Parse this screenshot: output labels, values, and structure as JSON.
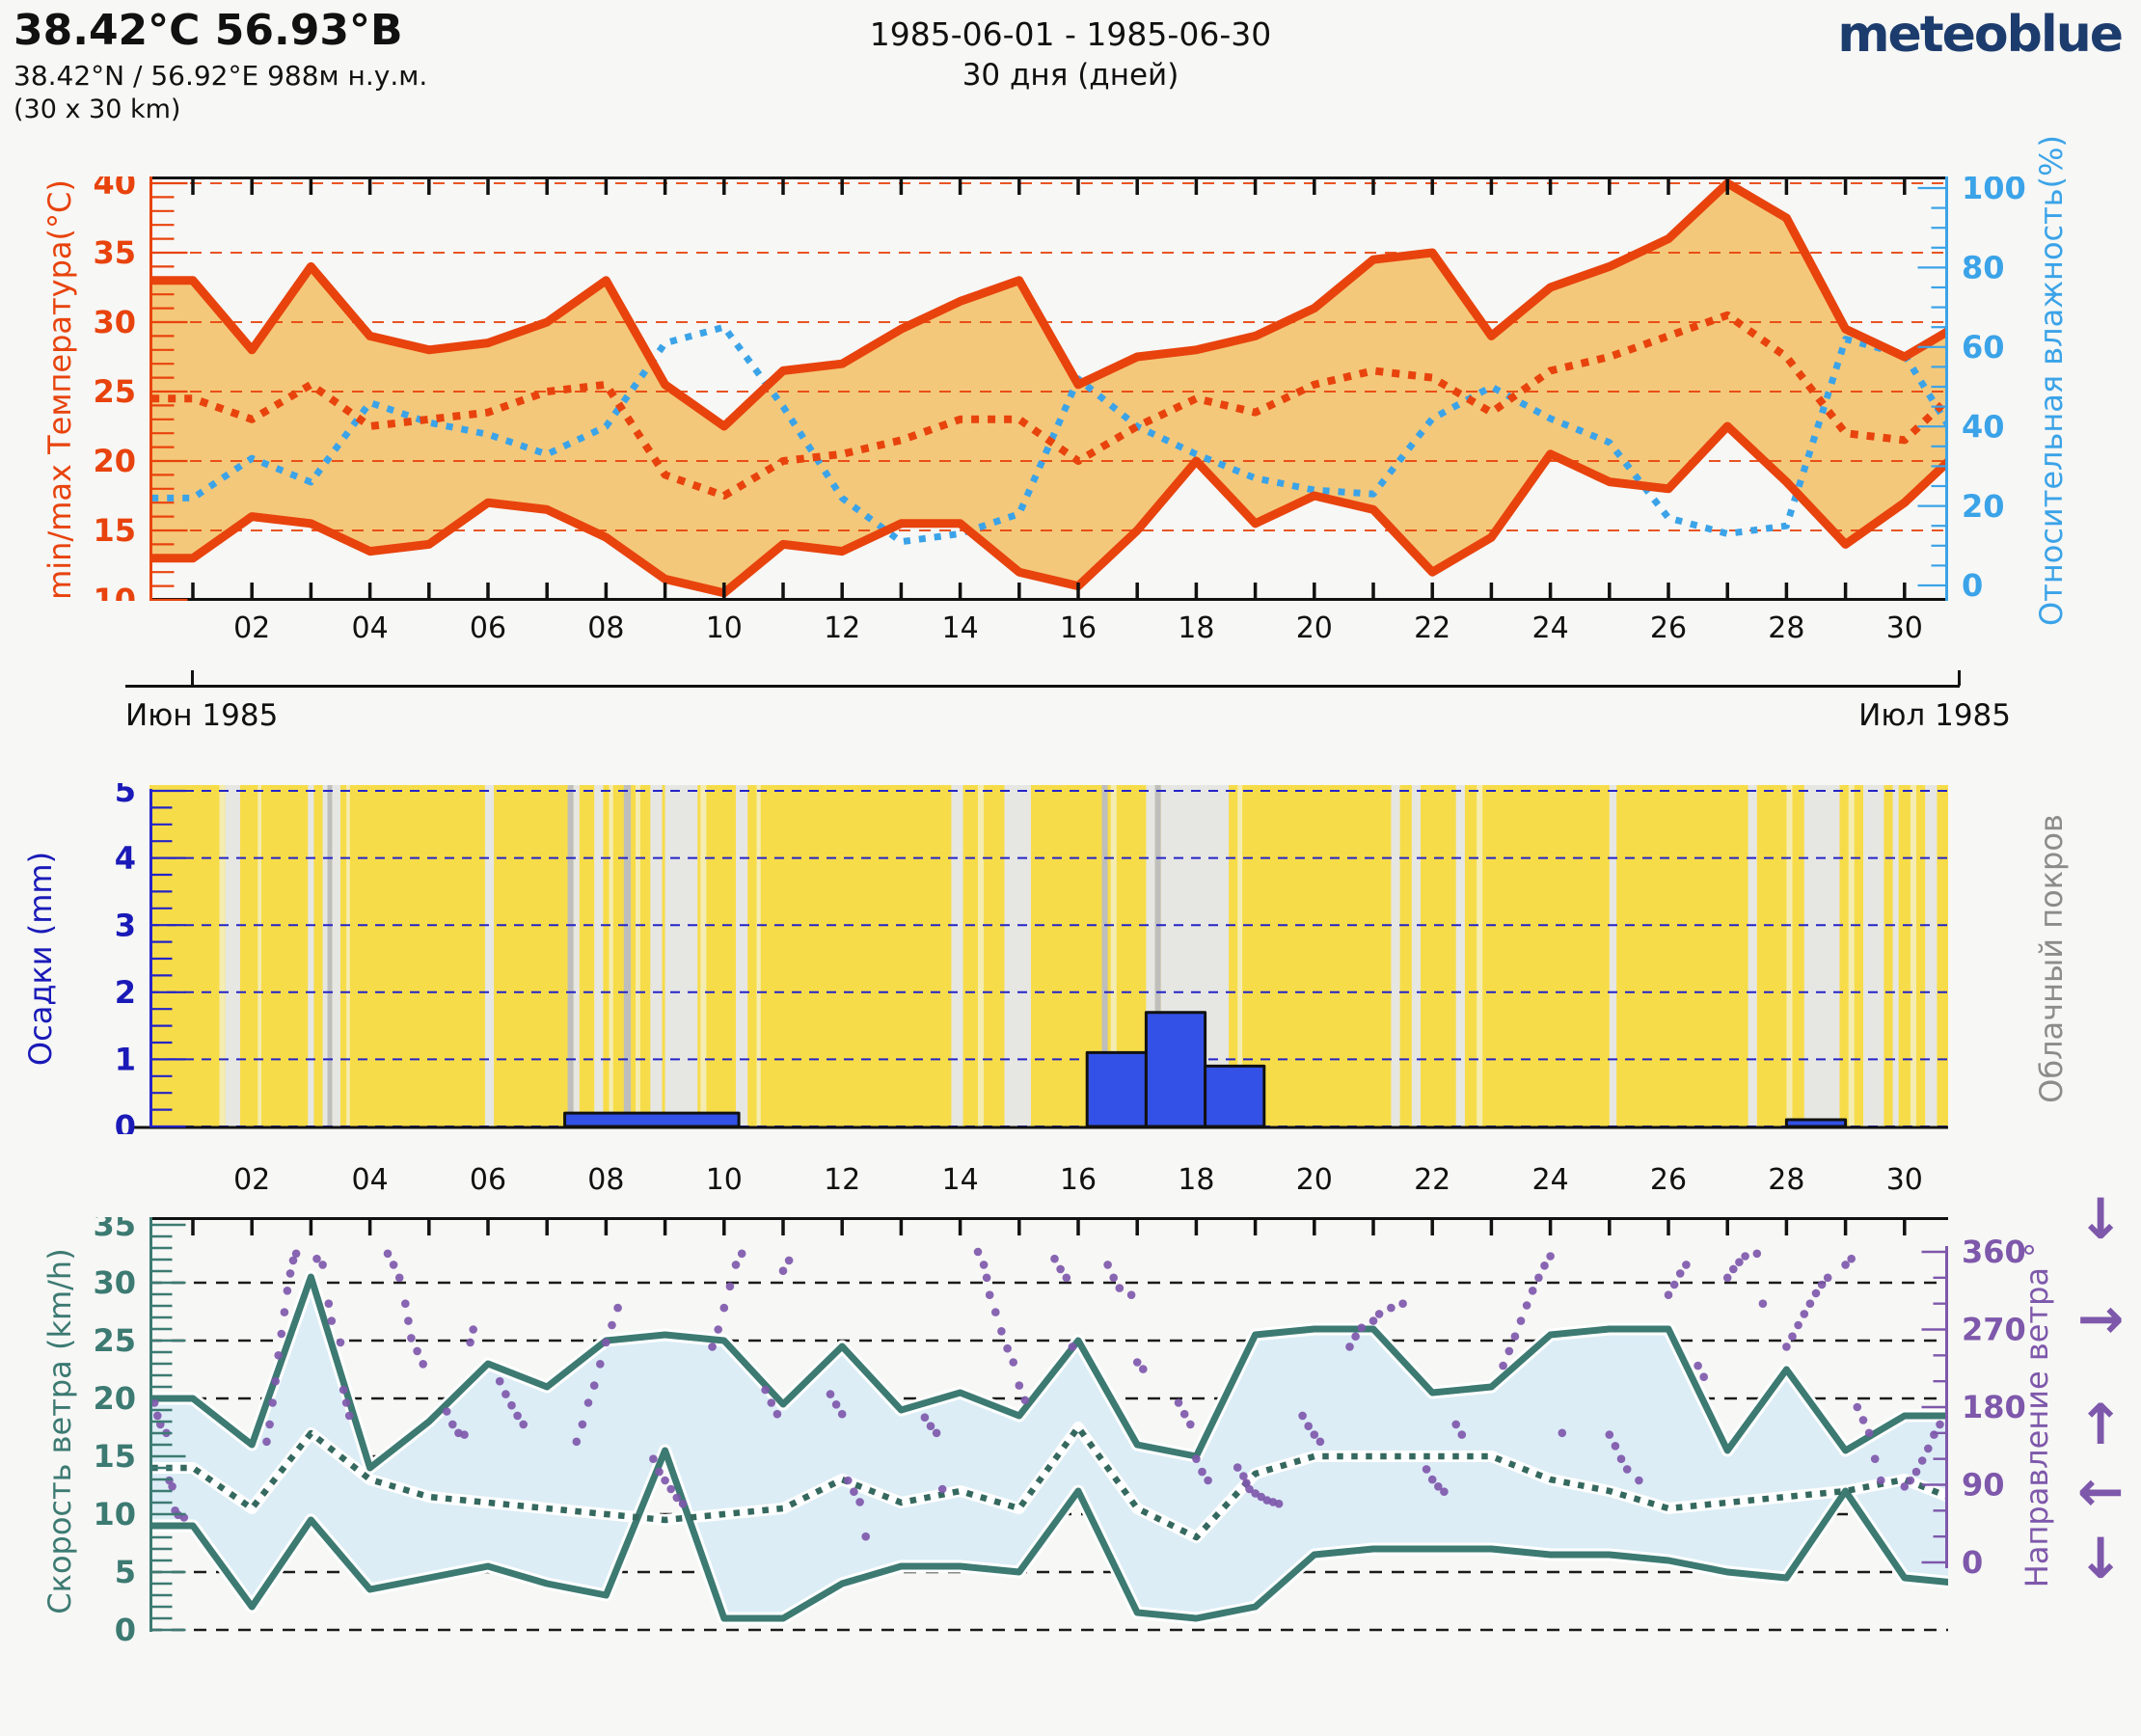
{
  "header": {
    "title": "38.42°C 56.93°В",
    "coordinates": "38.42°N / 56.92°E   988м н.у.м.",
    "area": "(30 x 30 km)",
    "period": "1985-06-01 - 1985-06-30",
    "duration": "30 дня (дней)",
    "logo": "meteoblue"
  },
  "months": {
    "left": "Июн 1985",
    "right": "Июл 1985"
  },
  "day_labels": [
    "02",
    "04",
    "06",
    "08",
    "10",
    "12",
    "14",
    "16",
    "18",
    "20",
    "22",
    "24",
    "26",
    "28",
    "30"
  ],
  "chart_data": [
    {
      "id": "temperature_humidity",
      "type": "line",
      "title_left": "min/max Температура(°C)",
      "title_right": "Относительная влажность(%)",
      "ylim": [
        10,
        40
      ],
      "ytick_step": 5,
      "ytick_minor": 1,
      "y2lim": [
        0,
        100
      ],
      "y2tick_step": 20,
      "y2tick_minor": 5,
      "x_days": [
        1,
        2,
        3,
        4,
        5,
        6,
        7,
        8,
        9,
        10,
        11,
        12,
        13,
        14,
        15,
        16,
        17,
        18,
        19,
        20,
        21,
        22,
        23,
        24,
        25,
        26,
        27,
        28,
        29,
        30,
        31
      ],
      "axis_color": "#e8430d",
      "axis2_color": "#3ba3e8",
      "band_fill": "#f4c87a",
      "gridline_color": "#e8430d",
      "series": [
        {
          "name": "t_max",
          "style": "solid",
          "color": "#e8430d",
          "values": [
            33,
            28,
            34,
            29,
            28,
            28.5,
            30,
            33,
            25.5,
            22.5,
            26.5,
            27,
            29.5,
            31.5,
            33,
            25.5,
            27.5,
            28,
            29,
            31,
            34.5,
            35,
            29,
            32.5,
            34,
            36,
            40,
            37.5,
            29.5,
            27.5,
            30
          ]
        },
        {
          "name": "t_mean",
          "style": "dotted",
          "color": "#e8430d",
          "values": [
            24.5,
            23,
            25.5,
            22.5,
            23,
            23.5,
            25,
            25.5,
            19,
            17.5,
            20,
            20.5,
            21.5,
            23,
            23,
            20,
            22.5,
            24.5,
            23.5,
            25.5,
            26.5,
            26,
            23.5,
            26.5,
            27.5,
            29,
            30.5,
            27.5,
            22,
            21.5,
            25.5
          ]
        },
        {
          "name": "t_min",
          "style": "solid",
          "color": "#e8430d",
          "values": [
            13,
            16,
            15.5,
            13.5,
            14,
            17,
            16.5,
            14.5,
            11.5,
            10.5,
            14,
            13.5,
            15.5,
            15.5,
            12,
            11,
            15,
            20,
            15.5,
            17.5,
            16.5,
            12,
            14.5,
            20.5,
            18.5,
            18,
            22.5,
            18.5,
            14,
            17,
            21
          ]
        },
        {
          "name": "rel_humidity",
          "style": "dotted",
          "color": "#3ba3e8",
          "axis": "y2",
          "values": [
            22,
            32,
            26,
            46,
            41,
            38,
            33,
            40,
            61,
            65,
            45,
            22,
            11,
            13,
            18,
            52,
            40,
            33,
            27,
            24,
            23,
            42,
            50,
            42,
            36,
            17,
            13,
            15,
            62,
            58,
            34
          ]
        }
      ]
    },
    {
      "id": "precipitation_cloud",
      "type": "bar",
      "title_left": "Осадки (mm)",
      "title_right": "Облачный покров",
      "ylim": [
        0,
        5
      ],
      "ytick_step": 1,
      "ytick_minor": 0.25,
      "axis_color": "#2424c8",
      "label_color": "#1a1ab8",
      "cloud_label_color": "#8c8c8c",
      "bar_color": "#3351e6",
      "bars": [
        {
          "from": 7.3,
          "to": 10.25,
          "mm": 0.2
        },
        {
          "from": 16.15,
          "to": 17.15,
          "mm": 1.1
        },
        {
          "from": 17.15,
          "to": 18.15,
          "mm": 1.7
        },
        {
          "from": 18.15,
          "to": 19.15,
          "mm": 0.9
        },
        {
          "from": 28.0,
          "to": 29.0,
          "mm": 0.1
        }
      ],
      "cloud_shades": {
        "sun": "#f7dc49",
        "pale": "#f4ecb0",
        "light": "#e6e6e3",
        "dark": "#bebebc"
      },
      "cloud_stripes": [
        [
          1.45,
          1.55,
          "pale"
        ],
        [
          1.55,
          1.8,
          "light"
        ],
        [
          2.1,
          2.16,
          "pale"
        ],
        [
          2.95,
          3.05,
          "light"
        ],
        [
          3.2,
          3.28,
          "light"
        ],
        [
          3.28,
          3.36,
          "dark"
        ],
        [
          3.36,
          3.5,
          "light"
        ],
        [
          3.6,
          3.66,
          "pale"
        ],
        [
          5.95,
          6.1,
          "light"
        ],
        [
          7.35,
          7.45,
          "dark"
        ],
        [
          7.45,
          7.55,
          "light"
        ],
        [
          7.8,
          7.95,
          "light"
        ],
        [
          8.05,
          8.12,
          "pale"
        ],
        [
          8.3,
          8.42,
          "dark"
        ],
        [
          8.5,
          8.58,
          "pale"
        ],
        [
          8.75,
          8.95,
          "light"
        ],
        [
          9.0,
          9.55,
          "light"
        ],
        [
          9.6,
          9.7,
          "pale"
        ],
        [
          10.2,
          10.4,
          "light"
        ],
        [
          10.55,
          10.62,
          "pale"
        ],
        [
          13.85,
          14.05,
          "light"
        ],
        [
          14.3,
          14.4,
          "pale"
        ],
        [
          14.75,
          15.2,
          "light"
        ],
        [
          16.4,
          16.5,
          "dark"
        ],
        [
          16.55,
          16.65,
          "pale"
        ],
        [
          17.15,
          17.3,
          "light"
        ],
        [
          17.3,
          17.4,
          "dark"
        ],
        [
          17.4,
          18.55,
          "light"
        ],
        [
          18.7,
          18.78,
          "pale"
        ],
        [
          21.3,
          21.45,
          "light"
        ],
        [
          21.65,
          21.8,
          "light"
        ],
        [
          22.4,
          22.55,
          "light"
        ],
        [
          22.75,
          22.85,
          "pale"
        ],
        [
          25.0,
          25.12,
          "light"
        ],
        [
          27.35,
          27.5,
          "light"
        ],
        [
          28.0,
          28.1,
          "pale"
        ],
        [
          28.3,
          28.9,
          "light"
        ],
        [
          29.05,
          29.15,
          "pale"
        ],
        [
          29.3,
          29.65,
          "light"
        ],
        [
          29.8,
          29.9,
          "light"
        ],
        [
          30.1,
          30.2,
          "pale"
        ],
        [
          30.35,
          30.55,
          "light"
        ]
      ]
    },
    {
      "id": "wind",
      "type": "line+scatter",
      "title_left": "Скорость ветра (km/h)",
      "title_right": "Направление ветра °",
      "ylim": [
        0,
        35
      ],
      "ytick_step": 5,
      "ytick_minor": 1,
      "y2lim": [
        0,
        360
      ],
      "y2tick_step": 90,
      "y2tick_minor": 30,
      "axis_color": "#3c7a72",
      "axis2_color": "#7e58ab",
      "band_fill": "#dcedf6",
      "gridline_color": "#1a1a1a",
      "series": [
        {
          "name": "wind_max",
          "style": "solid",
          "color": "#3c7a72",
          "values": [
            20,
            16,
            30.5,
            14,
            18,
            23,
            21,
            25,
            25.5,
            25,
            19.5,
            24.5,
            19,
            20.5,
            18.5,
            25,
            16,
            15,
            25.5,
            26,
            26,
            20.5,
            21,
            25.5,
            26,
            26,
            15.5,
            22.5,
            15.5,
            18.5,
            18.5
          ]
        },
        {
          "name": "wind_mean",
          "style": "dotted",
          "color": "#35695f",
          "values": [
            14,
            10.5,
            17,
            13,
            11.5,
            11,
            10.5,
            10,
            9.5,
            10,
            10.5,
            13,
            11,
            12,
            10.5,
            17.5,
            10.5,
            8,
            13.5,
            15,
            15,
            15,
            15,
            13,
            12,
            10.5,
            11,
            11.5,
            12,
            13,
            11
          ]
        },
        {
          "name": "wind_min",
          "style": "solid",
          "color": "#3c7a72",
          "values": [
            9,
            2,
            9.5,
            3.5,
            4.5,
            5.5,
            4,
            3,
            15.5,
            1,
            1,
            4,
            5.5,
            5.5,
            5,
            12,
            1.5,
            1,
            2,
            6.5,
            7,
            7,
            7,
            6.5,
            6.5,
            6,
            5,
            4.5,
            12,
            4.5,
            4
          ]
        }
      ],
      "direction_color": "#7e58ab",
      "arrow_glyphs": [
        "↓",
        "→",
        "↑",
        "←",
        "↓"
      ],
      "direction_points": [
        [
          0.35,
          185
        ],
        [
          0.4,
          170
        ],
        [
          0.45,
          160
        ],
        [
          0.55,
          150
        ],
        [
          0.6,
          95
        ],
        [
          0.65,
          88
        ],
        [
          0.7,
          60
        ],
        [
          0.75,
          55
        ],
        [
          0.85,
          52
        ],
        [
          2.25,
          140
        ],
        [
          2.3,
          160
        ],
        [
          2.35,
          185
        ],
        [
          2.4,
          210
        ],
        [
          2.45,
          240
        ],
        [
          2.5,
          265
        ],
        [
          2.55,
          290
        ],
        [
          2.6,
          315
        ],
        [
          2.65,
          335
        ],
        [
          2.7,
          350
        ],
        [
          2.75,
          358
        ],
        [
          3.1,
          352
        ],
        [
          3.2,
          345
        ],
        [
          3.3,
          300
        ],
        [
          3.35,
          280
        ],
        [
          3.5,
          255
        ],
        [
          3.55,
          200
        ],
        [
          3.6,
          185
        ],
        [
          3.65,
          170
        ],
        [
          4.3,
          358
        ],
        [
          4.4,
          345
        ],
        [
          4.5,
          330
        ],
        [
          4.6,
          300
        ],
        [
          4.65,
          280
        ],
        [
          4.7,
          260
        ],
        [
          4.8,
          245
        ],
        [
          4.9,
          230
        ],
        [
          5.3,
          175
        ],
        [
          5.4,
          160
        ],
        [
          5.5,
          150
        ],
        [
          5.6,
          148
        ],
        [
          5.7,
          255
        ],
        [
          5.75,
          270
        ],
        [
          6.2,
          210
        ],
        [
          6.3,
          195
        ],
        [
          6.4,
          182
        ],
        [
          6.5,
          170
        ],
        [
          6.6,
          160
        ],
        [
          7.5,
          140
        ],
        [
          7.6,
          160
        ],
        [
          7.7,
          185
        ],
        [
          7.8,
          205
        ],
        [
          7.9,
          230
        ],
        [
          8.0,
          255
        ],
        [
          8.1,
          275
        ],
        [
          8.2,
          295
        ],
        [
          8.8,
          120
        ],
        [
          8.9,
          105
        ],
        [
          9.0,
          95
        ],
        [
          9.1,
          85
        ],
        [
          9.2,
          75
        ],
        [
          9.3,
          68
        ],
        [
          9.8,
          250
        ],
        [
          9.9,
          270
        ],
        [
          10.0,
          295
        ],
        [
          10.1,
          320
        ],
        [
          10.2,
          345
        ],
        [
          10.3,
          358
        ],
        [
          10.7,
          200
        ],
        [
          10.8,
          185
        ],
        [
          10.9,
          172
        ],
        [
          11.0,
          338
        ],
        [
          11.1,
          350
        ],
        [
          11.8,
          195
        ],
        [
          11.9,
          183
        ],
        [
          12.0,
          172
        ],
        [
          12.1,
          95
        ],
        [
          12.2,
          82
        ],
        [
          12.3,
          70
        ],
        [
          12.4,
          30
        ],
        [
          13.4,
          168
        ],
        [
          13.5,
          158
        ],
        [
          13.6,
          150
        ],
        [
          13.7,
          85
        ],
        [
          14.3,
          360
        ],
        [
          14.4,
          345
        ],
        [
          14.45,
          330
        ],
        [
          14.5,
          310
        ],
        [
          14.6,
          290
        ],
        [
          14.7,
          268
        ],
        [
          14.8,
          248
        ],
        [
          14.9,
          232
        ],
        [
          15.0,
          205
        ],
        [
          15.1,
          188
        ],
        [
          15.6,
          352
        ],
        [
          15.7,
          340
        ],
        [
          15.8,
          330
        ],
        [
          15.9,
          250
        ],
        [
          16.5,
          345
        ],
        [
          16.6,
          330
        ],
        [
          16.7,
          318
        ],
        [
          16.9,
          310
        ],
        [
          17.0,
          232
        ],
        [
          17.1,
          224
        ],
        [
          17.7,
          185
        ],
        [
          17.8,
          172
        ],
        [
          17.9,
          160
        ],
        [
          18.0,
          120
        ],
        [
          18.1,
          105
        ],
        [
          18.2,
          95
        ],
        [
          18.7,
          110
        ],
        [
          18.8,
          100
        ],
        [
          18.85,
          92
        ],
        [
          18.9,
          85
        ],
        [
          19.0,
          80
        ],
        [
          19.1,
          76
        ],
        [
          19.2,
          72
        ],
        [
          19.3,
          70
        ],
        [
          19.4,
          68
        ],
        [
          19.8,
          170
        ],
        [
          19.9,
          158
        ],
        [
          20.0,
          148
        ],
        [
          20.1,
          140
        ],
        [
          20.6,
          250
        ],
        [
          20.7,
          262
        ],
        [
          20.8,
          272
        ],
        [
          21.0,
          280
        ],
        [
          21.1,
          288
        ],
        [
          21.3,
          295
        ],
        [
          21.5,
          300
        ],
        [
          21.9,
          108
        ],
        [
          22.0,
          96
        ],
        [
          22.1,
          88
        ],
        [
          22.2,
          82
        ],
        [
          22.4,
          160
        ],
        [
          22.5,
          148
        ],
        [
          23.2,
          228
        ],
        [
          23.3,
          245
        ],
        [
          23.4,
          262
        ],
        [
          23.5,
          280
        ],
        [
          23.6,
          298
        ],
        [
          23.7,
          315
        ],
        [
          23.8,
          330
        ],
        [
          23.9,
          344
        ],
        [
          24.0,
          355
        ],
        [
          24.2,
          150
        ],
        [
          25.0,
          148
        ],
        [
          25.1,
          135
        ],
        [
          25.2,
          120
        ],
        [
          25.3,
          108
        ],
        [
          25.5,
          95
        ],
        [
          26.0,
          310
        ],
        [
          26.1,
          322
        ],
        [
          26.2,
          335
        ],
        [
          26.3,
          345
        ],
        [
          26.5,
          228
        ],
        [
          26.6,
          215
        ],
        [
          27.0,
          330
        ],
        [
          27.1,
          340
        ],
        [
          27.2,
          348
        ],
        [
          27.3,
          355
        ],
        [
          27.5,
          358
        ],
        [
          27.6,
          300
        ],
        [
          28.0,
          250
        ],
        [
          28.1,
          262
        ],
        [
          28.2,
          275
        ],
        [
          28.3,
          288
        ],
        [
          28.4,
          300
        ],
        [
          28.5,
          312
        ],
        [
          28.6,
          322
        ],
        [
          28.7,
          330
        ],
        [
          29.0,
          345
        ],
        [
          29.1,
          352
        ],
        [
          29.2,
          180
        ],
        [
          29.3,
          165
        ],
        [
          29.4,
          150
        ],
        [
          29.5,
          120
        ],
        [
          29.6,
          95
        ],
        [
          30.0,
          88
        ],
        [
          30.1,
          95
        ],
        [
          30.2,
          105
        ],
        [
          30.3,
          118
        ],
        [
          30.4,
          132
        ],
        [
          30.5,
          148
        ],
        [
          30.6,
          160
        ]
      ]
    }
  ]
}
